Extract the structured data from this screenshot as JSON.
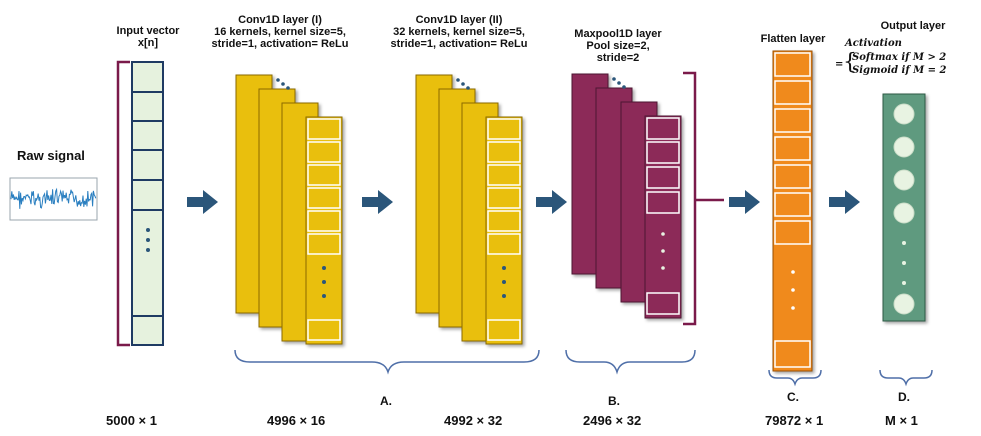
{
  "labels": {
    "raw_signal": "Raw signal",
    "input_title_1": "Input vector",
    "input_title_2": "x[n]",
    "conv1_title": "Conv1D layer (I)",
    "conv1_line2": "16 kernels, kernel size=5,",
    "conv1_line3": "stride=1, activation= ReLu",
    "conv2_title": "Conv1D layer (II)",
    "conv2_line2": "32 kernels, kernel size=5,",
    "conv2_line3": "stride=1, activation= ReLu",
    "pool_title": "Maxpool1D layer",
    "pool_line2": "Pool size=2,",
    "pool_line3": "stride=2",
    "flatten_title": "Flatten layer",
    "output_title": "Output layer",
    "activation": "Activation",
    "softmax_rule": "Softmax if M > 2",
    "sigmoid_rule": "Sigmoid if M = 2",
    "equals": "="
  },
  "brackets": {
    "a": "A.",
    "b": "B.",
    "c": "C.",
    "d": "D."
  },
  "dimensions": {
    "input": "5000 × 1",
    "conv1": "4996 × 16",
    "conv2": "4992 × 32",
    "pool": "2496 × 32",
    "flatten": "79872 × 1",
    "output": "M × 1"
  },
  "colors": {
    "input_fill": "#e6f2de",
    "input_stroke": "#1f3b63",
    "conv_fill": "#e9bf0b",
    "conv_stroke": "#8a6a00",
    "pool_fill": "#8c2a58",
    "pool_stroke": "#4d1230",
    "flatten_fill": "#f08a1c",
    "flatten_stroke": "#9a4f00",
    "output_fill": "#5f9a7f",
    "output_node": "#e8f3e2",
    "arrow": "#2b567a",
    "bracket_input": "#7a1a4a",
    "bracket_blue": "#4f6fa8",
    "signal": "#2a7fc0"
  }
}
